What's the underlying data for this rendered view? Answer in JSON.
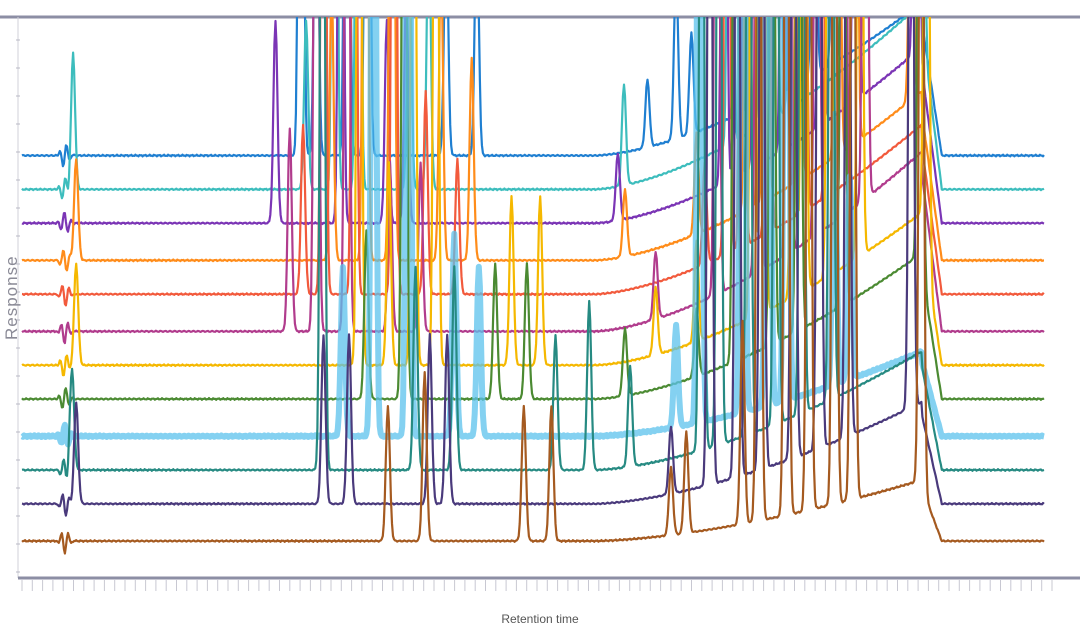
{
  "chart_data": {
    "type": "line",
    "title": "",
    "xlabel": "Retention time",
    "ylabel": "Response",
    "xlim": [
      0,
      100
    ],
    "grid": false,
    "legend": "none",
    "series": [
      {
        "color": "#1f7fd1",
        "baseline": 10.6,
        "rise": 4.5,
        "peaks": [
          [
            27.3,
            30
          ],
          [
            28.8,
            12
          ],
          [
            31.8,
            30
          ],
          [
            33.8,
            30
          ],
          [
            41.5,
            7
          ],
          [
            44.5,
            7
          ],
          [
            61.2,
            2
          ],
          [
            64.0,
            5
          ],
          [
            65.5,
            3
          ],
          [
            70.0,
            30
          ],
          [
            72.5,
            30
          ],
          [
            74.0,
            30
          ],
          [
            75.6,
            30
          ],
          [
            77.5,
            14
          ],
          [
            79.4,
            6
          ]
        ]
      },
      {
        "color": "#3dbdbd",
        "baseline": 9.6,
        "rise": 5.5,
        "peaks": [
          [
            5.0,
            4
          ],
          [
            27.8,
            5
          ],
          [
            30.6,
            30
          ],
          [
            32.9,
            30
          ],
          [
            37.9,
            8
          ],
          [
            39.8,
            8
          ],
          [
            58.9,
            3
          ],
          [
            69.3,
            30
          ],
          [
            71.5,
            30
          ],
          [
            73.6,
            30
          ],
          [
            75.3,
            30
          ],
          [
            88.0,
            30
          ]
        ]
      },
      {
        "color": "#7b35b5",
        "baseline": 8.6,
        "rise": 5.2,
        "peaks": [
          [
            24.8,
            6
          ],
          [
            31.2,
            30
          ],
          [
            35.7,
            6
          ],
          [
            37.6,
            7
          ],
          [
            58.3,
            2
          ],
          [
            68.7,
            30
          ],
          [
            70.0,
            30
          ],
          [
            71.8,
            30
          ],
          [
            74.5,
            30
          ],
          [
            78.2,
            30
          ],
          [
            81.6,
            30
          ],
          [
            87.5,
            30
          ]
        ]
      },
      {
        "color": "#ff8c1a",
        "baseline": 7.5,
        "rise": 5.0,
        "peaks": [
          [
            5.3,
            3
          ],
          [
            30.3,
            8
          ],
          [
            33.6,
            30
          ],
          [
            36.2,
            30
          ],
          [
            41.0,
            9
          ],
          [
            44.0,
            6
          ],
          [
            59.0,
            2
          ],
          [
            66.0,
            3
          ],
          [
            71.0,
            30
          ],
          [
            72.8,
            30
          ],
          [
            76.0,
            30
          ],
          [
            79.8,
            30
          ],
          [
            81.5,
            30
          ],
          [
            87.0,
            9
          ]
        ]
      },
      {
        "color": "#f25a3c",
        "baseline": 6.5,
        "rise": 5.0,
        "peaks": [
          [
            27.5,
            5
          ],
          [
            29.5,
            30
          ],
          [
            32.5,
            30
          ],
          [
            36.4,
            30
          ],
          [
            39.5,
            6
          ],
          [
            42.6,
            4
          ],
          [
            66.8,
            3
          ],
          [
            69.0,
            30
          ],
          [
            70.5,
            30
          ],
          [
            73.0,
            30
          ],
          [
            76.5,
            30
          ],
          [
            78.9,
            30
          ]
        ]
      },
      {
        "color": "#b13c8d",
        "baseline": 5.4,
        "rise": 5.3,
        "peaks": [
          [
            26.2,
            6
          ],
          [
            28.8,
            30
          ],
          [
            31.8,
            30
          ],
          [
            36.0,
            5
          ],
          [
            39.0,
            5
          ],
          [
            62.0,
            2
          ],
          [
            68.0,
            30
          ],
          [
            72.0,
            30
          ],
          [
            75.0,
            30
          ],
          [
            77.8,
            30
          ],
          [
            80.4,
            30
          ],
          [
            82.5,
            30
          ]
        ]
      },
      {
        "color": "#f5b800",
        "baseline": 4.4,
        "rise": 4.5,
        "peaks": [
          [
            5.3,
            3
          ],
          [
            33.0,
            30
          ],
          [
            35.9,
            6
          ],
          [
            38.3,
            30
          ],
          [
            40.5,
            30
          ],
          [
            47.9,
            5
          ],
          [
            50.7,
            5
          ],
          [
            62.0,
            2
          ],
          [
            66.0,
            3
          ],
          [
            71.5,
            30
          ],
          [
            72.5,
            30
          ],
          [
            75.5,
            30
          ],
          [
            76.5,
            30
          ],
          [
            79.0,
            30
          ],
          [
            82.0,
            30
          ],
          [
            88.5,
            30
          ]
        ]
      },
      {
        "color": "#4b8a32",
        "baseline": 3.4,
        "rise": 4.3,
        "peaks": [
          [
            33.7,
            5
          ],
          [
            37.4,
            30
          ],
          [
            46.3,
            4
          ],
          [
            49.4,
            4
          ],
          [
            59.0,
            2
          ],
          [
            66.0,
            2
          ],
          [
            69.8,
            30
          ],
          [
            73.4,
            30
          ],
          [
            76.0,
            30
          ],
          [
            80.3,
            30
          ],
          [
            87.9,
            30
          ]
        ]
      },
      {
        "color": "#5bc2ec",
        "baseline": 2.3,
        "rise": 2.5,
        "peaks": [
          [
            31.4,
            5
          ],
          [
            34.4,
            30
          ],
          [
            37.8,
            30
          ],
          [
            42.3,
            6
          ],
          [
            44.7,
            5
          ],
          [
            64.0,
            3
          ],
          [
            66.3,
            30
          ],
          [
            70.5,
            30
          ],
          [
            73.0,
            30
          ],
          [
            74.8,
            30
          ],
          [
            79.5,
            8
          ],
          [
            81.0,
            6
          ]
        ]
      },
      {
        "color": "#268a82",
        "baseline": 1.3,
        "rise": 3.5,
        "peaks": [
          [
            4.9,
            3
          ],
          [
            29.4,
            30
          ],
          [
            38.5,
            6
          ],
          [
            42.3,
            6
          ],
          [
            52.2,
            4
          ],
          [
            55.5,
            5
          ],
          [
            59.5,
            3
          ],
          [
            66.5,
            30
          ],
          [
            68.2,
            30
          ],
          [
            71.1,
            30
          ],
          [
            73.8,
            30
          ],
          [
            76.3,
            30
          ],
          [
            79.2,
            30
          ]
        ]
      },
      {
        "color": "#4a3a7c",
        "baseline": 0.3,
        "rise": 3.0,
        "peaks": [
          [
            5.3,
            3
          ],
          [
            29.5,
            5
          ],
          [
            32.0,
            5
          ],
          [
            39.9,
            5
          ],
          [
            41.6,
            5
          ],
          [
            63.5,
            2
          ],
          [
            67.3,
            30
          ],
          [
            70.0,
            30
          ],
          [
            72.4,
            30
          ],
          [
            75.5,
            30
          ],
          [
            78.0,
            30
          ],
          [
            80.8,
            30
          ],
          [
            87.0,
            30
          ]
        ]
      },
      {
        "color": "#a55a20",
        "baseline": -0.8,
        "rise": 1.8,
        "peaks": [
          [
            35.8,
            4
          ],
          [
            39.4,
            5
          ],
          [
            49.1,
            4
          ],
          [
            51.8,
            4
          ],
          [
            63.5,
            2
          ],
          [
            65.0,
            3
          ],
          [
            70.5,
            6
          ],
          [
            72.1,
            30
          ],
          [
            74.8,
            30
          ],
          [
            77.0,
            30
          ],
          [
            79.5,
            30
          ],
          [
            81.3,
            30
          ],
          [
            88.0,
            30
          ]
        ]
      }
    ]
  }
}
